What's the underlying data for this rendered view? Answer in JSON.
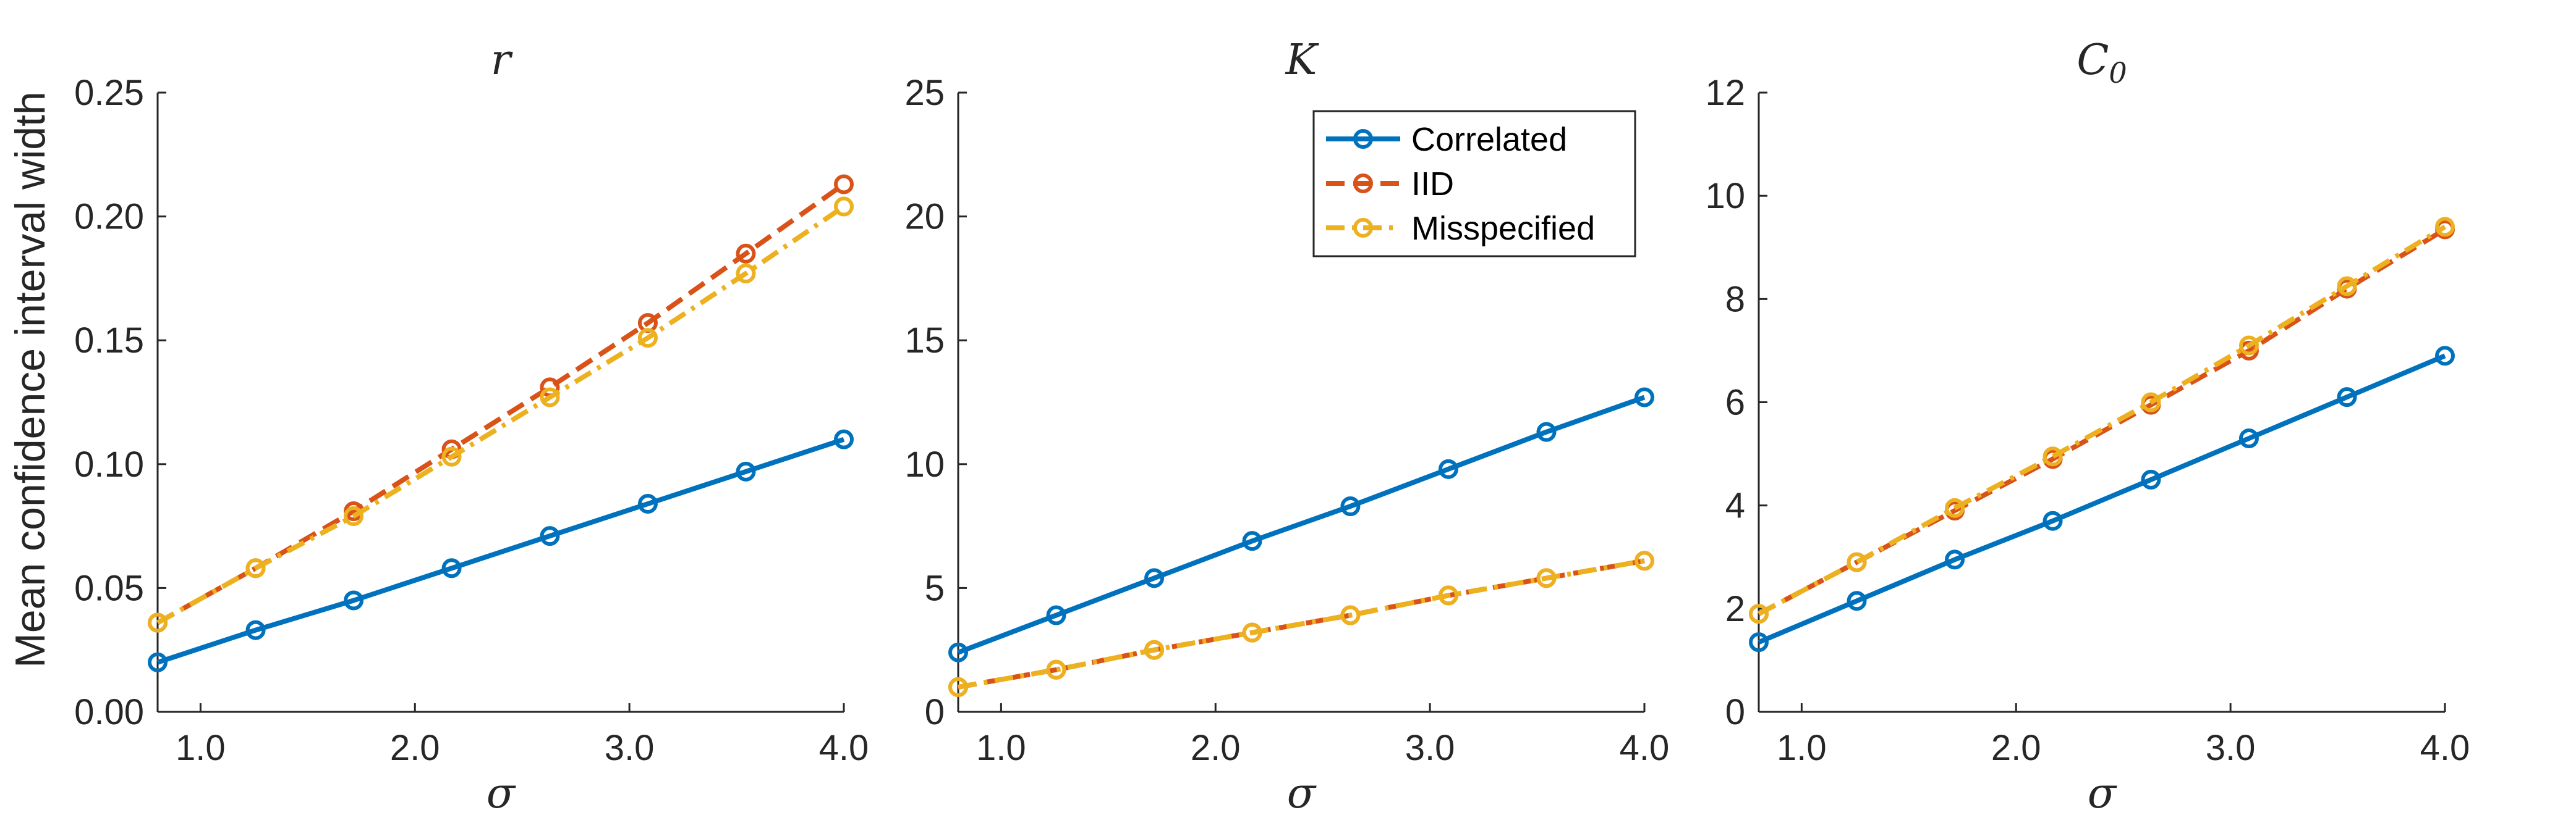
{
  "figure": {
    "ylabel": "Mean confidence interval width",
    "legend": {
      "placement": "top-right of middle panel",
      "entries": [
        {
          "name": "Correlated",
          "color": "#0072BD",
          "style": "solid"
        },
        {
          "name": "IID",
          "color": "#D95319",
          "style": "dashed"
        },
        {
          "name": "Misspecified",
          "color": "#EDB120",
          "style": "dash-dot"
        }
      ]
    }
  },
  "chart_data": [
    {
      "type": "line",
      "title": "r",
      "xlabel": "σ",
      "ylabel": "Mean confidence interval width",
      "xlim": [
        0.8,
        4.0
      ],
      "ylim": [
        0,
        0.25
      ],
      "xticks": [
        1.0,
        2.0,
        3.0,
        4.0
      ],
      "xtick_labels": [
        "1.0",
        "2.0",
        "3.0",
        "4.0"
      ],
      "yticks": [
        0,
        0.05,
        0.1,
        0.15,
        0.2,
        0.25
      ],
      "ytick_labels": [
        "0.00",
        "0.05",
        "0.10",
        "0.15",
        "0.20",
        "0.25"
      ],
      "x": [
        0.8,
        1.257,
        1.714,
        2.171,
        2.629,
        3.086,
        3.543,
        4.0
      ],
      "series": [
        {
          "name": "Correlated",
          "color": "#0072BD",
          "dash": "",
          "values": [
            0.02,
            0.033,
            0.045,
            0.058,
            0.071,
            0.084,
            0.097,
            0.11
          ]
        },
        {
          "name": "IID",
          "color": "#D95319",
          "dash": "30,14",
          "values": [
            0.036,
            0.058,
            0.081,
            0.106,
            0.131,
            0.157,
            0.185,
            0.213
          ]
        },
        {
          "name": "Misspecified",
          "color": "#EDB120",
          "dash": "30,12,6,12",
          "values": [
            0.036,
            0.058,
            0.079,
            0.103,
            0.127,
            0.151,
            0.177,
            0.204
          ]
        }
      ]
    },
    {
      "type": "line",
      "title": "K",
      "xlabel": "σ",
      "xlim": [
        0.8,
        4.0
      ],
      "ylim": [
        0,
        25
      ],
      "xticks": [
        1.0,
        2.0,
        3.0,
        4.0
      ],
      "xtick_labels": [
        "1.0",
        "2.0",
        "3.0",
        "4.0"
      ],
      "yticks": [
        0,
        5,
        10,
        15,
        20,
        25
      ],
      "ytick_labels": [
        "0",
        "5",
        "10",
        "15",
        "20",
        "25"
      ],
      "x": [
        0.8,
        1.257,
        1.714,
        2.171,
        2.629,
        3.086,
        3.543,
        4.0
      ],
      "series": [
        {
          "name": "Correlated",
          "color": "#0072BD",
          "dash": "",
          "values": [
            2.4,
            3.9,
            5.4,
            6.9,
            8.3,
            9.8,
            11.3,
            12.7
          ]
        },
        {
          "name": "IID",
          "color": "#D95319",
          "dash": "30,14",
          "values": [
            1.0,
            1.7,
            2.5,
            3.2,
            3.9,
            4.7,
            5.4,
            6.1
          ]
        },
        {
          "name": "Misspecified",
          "color": "#EDB120",
          "dash": "30,12,6,12",
          "values": [
            1.0,
            1.7,
            2.5,
            3.2,
            3.9,
            4.7,
            5.4,
            6.1
          ]
        }
      ]
    },
    {
      "type": "line",
      "title": "C",
      "title_subscript": "0",
      "xlabel": "σ",
      "xlim": [
        0.8,
        4.0
      ],
      "ylim": [
        0,
        12
      ],
      "xticks": [
        1.0,
        2.0,
        3.0,
        4.0
      ],
      "xtick_labels": [
        "1.0",
        "2.0",
        "3.0",
        "4.0"
      ],
      "yticks": [
        0,
        2,
        4,
        6,
        8,
        10,
        12
      ],
      "ytick_labels": [
        "0",
        "2",
        "4",
        "6",
        "8",
        "10",
        "12"
      ],
      "x": [
        0.8,
        1.257,
        1.714,
        2.171,
        2.629,
        3.086,
        3.543,
        4.0
      ],
      "series": [
        {
          "name": "Correlated",
          "color": "#0072BD",
          "dash": "",
          "values": [
            1.35,
            2.15,
            2.95,
            3.7,
            4.5,
            5.3,
            6.1,
            6.9
          ]
        },
        {
          "name": "IID",
          "color": "#D95319",
          "dash": "30,14",
          "values": [
            1.9,
            2.9,
            3.9,
            4.9,
            5.95,
            7.0,
            8.2,
            9.35
          ]
        },
        {
          "name": "Misspecified",
          "color": "#EDB120",
          "dash": "30,12,6,12",
          "values": [
            1.9,
            2.9,
            3.95,
            4.95,
            6.0,
            7.1,
            8.25,
            9.4
          ]
        }
      ]
    }
  ]
}
